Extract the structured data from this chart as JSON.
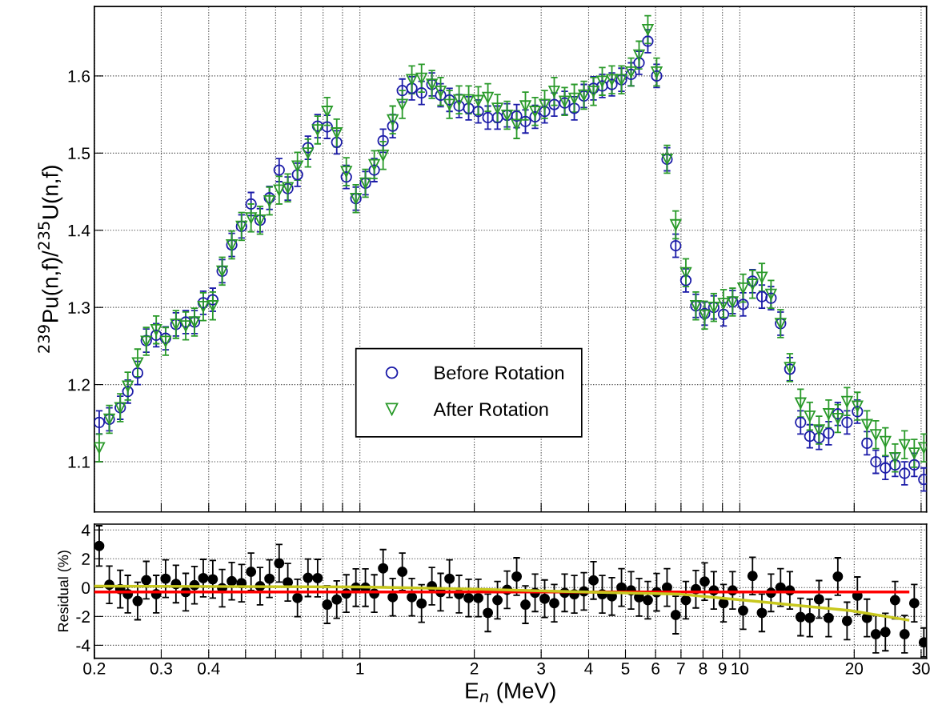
{
  "chart_data": [
    {
      "type": "scatter",
      "ylabel": "$^{239}$Pu(n,f)/$^{235}$U(n,f)",
      "log": "x",
      "grid": true,
      "legend": "bottom",
      "tick_labels": "y",
      "xlim": [
        0.2,
        31
      ],
      "ylim": [
        1.035,
        1.69
      ],
      "yticks": [
        1.1,
        1.2,
        1.3,
        1.4,
        1.5,
        1.6
      ],
      "xticks": [
        0.2,
        0.3,
        0.4,
        {
          "value": 0.5,
          "label": null
        },
        {
          "value": 0.6,
          "label": null
        },
        {
          "value": 0.7,
          "label": null
        },
        {
          "value": 0.8,
          "label": null
        },
        {
          "value": 0.9,
          "label": null
        },
        1,
        2,
        3,
        4,
        5,
        6,
        7,
        8,
        9,
        10,
        20,
        30
      ],
      "x": [
        0.206,
        0.219,
        0.234,
        0.245,
        0.26,
        0.274,
        0.291,
        0.308,
        0.328,
        0.348,
        0.367,
        0.387,
        0.41,
        0.434,
        0.46,
        0.488,
        0.517,
        0.546,
        0.578,
        0.613,
        0.646,
        0.685,
        0.73,
        0.774,
        0.82,
        0.869,
        0.921,
        0.976,
        1.034,
        1.091,
        1.151,
        1.22,
        1.293,
        1.37,
        1.453,
        1.547,
        1.631,
        1.721,
        1.824,
        1.933,
        2.049,
        2.172,
        2.302,
        2.44,
        2.586,
        2.727,
        2.891,
        3.064,
        3.247,
        3.459,
        3.667,
        3.887,
        4.119,
        4.344,
        4.605,
        4.881,
        5.173,
        5.43,
        5.726,
        6.04,
        6.433,
        6.78,
        7.21,
        7.66,
        8.08,
        8.54,
        9.06,
        9.57,
        10.2,
        10.8,
        11.43,
        12.08,
        12.8,
        13.54,
        14.45,
        15.28,
        16.16,
        17.13,
        18.11,
        19.15,
        20.39,
        21.61,
        22.8,
        24.16,
        25.62,
        27.14,
        28.78,
        30.5
      ],
      "series": [
        {
          "name": "Before Rotation",
          "color": "#1c1ca8",
          "marker": "circle",
          "values": [
            1.151,
            1.155,
            1.17,
            1.191,
            1.215,
            1.257,
            1.264,
            1.26,
            1.278,
            1.281,
            1.281,
            1.306,
            1.31,
            1.347,
            1.381,
            1.405,
            1.434,
            1.413,
            1.442,
            1.478,
            1.454,
            1.472,
            1.507,
            1.535,
            1.534,
            1.514,
            1.469,
            1.441,
            1.461,
            1.478,
            1.516,
            1.535,
            1.581,
            1.584,
            1.578,
            1.589,
            1.575,
            1.569,
            1.561,
            1.558,
            1.554,
            1.546,
            1.546,
            1.549,
            1.548,
            1.541,
            1.547,
            1.554,
            1.563,
            1.565,
            1.558,
            1.574,
            1.584,
            1.587,
            1.589,
            1.595,
            1.602,
            1.617,
            1.645,
            1.6,
            1.492,
            1.38,
            1.335,
            1.302,
            1.292,
            1.3,
            1.291,
            1.307,
            1.304,
            1.334,
            1.314,
            1.312,
            1.279,
            1.22,
            1.151,
            1.133,
            1.131,
            1.137,
            1.162,
            1.151,
            1.165,
            1.124,
            1.1,
            1.092,
            1.096,
            1.085,
            1.096,
            1.077
          ],
          "errors": [
            0.015,
            0.015,
            0.015,
            0.015,
            0.015,
            0.015,
            0.015,
            0.015,
            0.015,
            0.015,
            0.015,
            0.015,
            0.015,
            0.015,
            0.015,
            0.015,
            0.015,
            0.015,
            0.015,
            0.015,
            0.015,
            0.015,
            0.015,
            0.015,
            0.015,
            0.015,
            0.015,
            0.015,
            0.015,
            0.015,
            0.015,
            0.015,
            0.015,
            0.015,
            0.015,
            0.015,
            0.015,
            0.015,
            0.015,
            0.015,
            0.015,
            0.015,
            0.015,
            0.015,
            0.015,
            0.015,
            0.015,
            0.015,
            0.015,
            0.015,
            0.015,
            0.015,
            0.015,
            0.015,
            0.015,
            0.015,
            0.015,
            0.015,
            0.015,
            0.015,
            0.015,
            0.015,
            0.015,
            0.015,
            0.015,
            0.015,
            0.015,
            0.015,
            0.015,
            0.015,
            0.015,
            0.015,
            0.015,
            0.015,
            0.015,
            0.015,
            0.015,
            0.015,
            0.015,
            0.015,
            0.015,
            0.015,
            0.015,
            0.015,
            0.015,
            0.015,
            0.015,
            0.015
          ]
        },
        {
          "name": "After Rotation",
          "color": "#2a9a2a",
          "marker": "triangle",
          "values": [
            1.118,
            1.155,
            1.17,
            1.198,
            1.228,
            1.256,
            1.271,
            1.256,
            1.278,
            1.276,
            1.281,
            1.301,
            1.302,
            1.347,
            1.381,
            1.405,
            1.416,
            1.413,
            1.438,
            1.452,
            1.455,
            1.483,
            1.5,
            1.53,
            1.554,
            1.526,
            1.476,
            1.441,
            1.461,
            1.485,
            1.497,
            1.543,
            1.563,
            1.595,
            1.597,
            1.589,
            1.58,
            1.563,
            1.569,
            1.569,
            1.568,
            1.572,
            1.558,
            1.549,
            1.537,
            1.561,
            1.554,
            1.563,
            1.58,
            1.567,
            1.571,
            1.575,
            1.58,
            1.593,
            1.595,
            1.595,
            1.605,
            1.627,
            1.66,
            1.605,
            1.492,
            1.407,
            1.345,
            1.302,
            1.29,
            1.3,
            1.305,
            1.307,
            1.325,
            1.33,
            1.339,
            1.317,
            1.279,
            1.222,
            1.176,
            1.159,
            1.141,
            1.162,
            1.156,
            1.178,
            1.172,
            1.148,
            1.135,
            1.126,
            1.105,
            1.122,
            1.111,
            1.118
          ],
          "errors": [
            0.018,
            0.018,
            0.018,
            0.018,
            0.018,
            0.018,
            0.018,
            0.018,
            0.018,
            0.018,
            0.018,
            0.018,
            0.018,
            0.018,
            0.018,
            0.018,
            0.018,
            0.018,
            0.018,
            0.018,
            0.018,
            0.018,
            0.018,
            0.018,
            0.018,
            0.018,
            0.018,
            0.018,
            0.018,
            0.018,
            0.018,
            0.018,
            0.018,
            0.018,
            0.018,
            0.018,
            0.018,
            0.018,
            0.018,
            0.018,
            0.018,
            0.018,
            0.018,
            0.018,
            0.018,
            0.018,
            0.018,
            0.018,
            0.018,
            0.018,
            0.018,
            0.018,
            0.018,
            0.018,
            0.018,
            0.018,
            0.018,
            0.018,
            0.018,
            0.018,
            0.018,
            0.018,
            0.018,
            0.018,
            0.018,
            0.018,
            0.018,
            0.018,
            0.018,
            0.018,
            0.018,
            0.018,
            0.018,
            0.018,
            0.018,
            0.018,
            0.018,
            0.018,
            0.018,
            0.018,
            0.018,
            0.018,
            0.018,
            0.018,
            0.018,
            0.018,
            0.018,
            0.018
          ]
        }
      ]
    },
    {
      "type": "scatter",
      "xlabel": "E$_{n}$ (MeV)",
      "ylabel": "Residual (%)",
      "log": "x",
      "grid": true,
      "xlim": [
        0.2,
        31
      ],
      "ylim": [
        -4.9,
        4.4
      ],
      "yticks": [
        -4,
        -2,
        0,
        2,
        4
      ],
      "xticks": [
        0.2,
        0.3,
        0.4,
        {
          "value": 0.5,
          "label": null
        },
        {
          "value": 0.6,
          "label": null
        },
        {
          "value": 0.7,
          "label": null
        },
        {
          "value": 0.8,
          "label": null
        },
        {
          "value": 0.9,
          "label": null
        },
        1,
        2,
        3,
        4,
        5,
        6,
        7,
        8,
        9,
        10,
        20,
        30
      ],
      "x": [
        0.206,
        0.219,
        0.234,
        0.245,
        0.26,
        0.274,
        0.291,
        0.308,
        0.328,
        0.348,
        0.367,
        0.387,
        0.41,
        0.434,
        0.46,
        0.488,
        0.517,
        0.546,
        0.578,
        0.613,
        0.646,
        0.685,
        0.73,
        0.774,
        0.82,
        0.869,
        0.921,
        0.976,
        1.034,
        1.091,
        1.151,
        1.22,
        1.293,
        1.37,
        1.453,
        1.547,
        1.631,
        1.721,
        1.824,
        1.933,
        2.049,
        2.172,
        2.302,
        2.44,
        2.586,
        2.727,
        2.891,
        3.064,
        3.247,
        3.459,
        3.667,
        3.887,
        4.119,
        4.344,
        4.605,
        4.881,
        5.173,
        5.43,
        5.726,
        6.04,
        6.433,
        6.78,
        7.21,
        7.66,
        8.08,
        8.54,
        9.06,
        9.57,
        10.2,
        10.8,
        11.43,
        12.08,
        12.8,
        13.54,
        14.45,
        15.28,
        16.16,
        17.13,
        18.11,
        19.15,
        20.39,
        21.61,
        22.8,
        24.16,
        25.62,
        27.14,
        28.78,
        30.5
      ],
      "series": [
        {
          "type": "scatter",
          "color": "#000000",
          "marker": "circle",
          "values": [
            2.89,
            0.2,
            -0.1,
            -0.45,
            -0.93,
            0.52,
            -0.45,
            0.62,
            0.25,
            -0.31,
            0.17,
            0.66,
            0.58,
            -0.04,
            0.45,
            0.31,
            1.1,
            0.1,
            0.62,
            1.69,
            0.37,
            -0.72,
            0.68,
            0.66,
            -1.18,
            -0.83,
            -0.41,
            0,
            0,
            -0.41,
            1.34,
            -0.66,
            1.1,
            -0.66,
            -1.1,
            0.1,
            -0.31,
            0.62,
            -0.45,
            -0.72,
            -0.72,
            -1.75,
            -0.87,
            -0.15,
            0.77,
            -1.18,
            -0.36,
            -0.77,
            -1.08,
            -0.36,
            -0.46,
            -0.26,
            0.5,
            -0.46,
            -0.61,
            0.01,
            -0.19,
            -0.67,
            -0.87,
            -0.32,
            0.01,
            -1.9,
            -0.87,
            -0.11,
            0.42,
            -0.19,
            -1.08,
            -0.19,
            -1.59,
            0.81,
            -1.75,
            -0.36,
            0.01,
            -0.19,
            -2.04,
            -2.1,
            -0.81,
            -2.1,
            0.77,
            -2.31,
            -0.56,
            -2.1,
            -3.23,
            -3.08,
            -0.87,
            -3.23,
            -1.08,
            -3.8
          ],
          "errors": [
            1.4,
            1.3,
            1.3,
            1.3,
            1.3,
            1.3,
            1.3,
            1.3,
            1.3,
            1.3,
            1.3,
            1.3,
            1.3,
            1.3,
            1.3,
            1.3,
            1.3,
            1.3,
            1.3,
            1.3,
            1.3,
            1.3,
            1.3,
            1.3,
            1.3,
            1.3,
            1.3,
            1.3,
            1.3,
            1.3,
            1.3,
            1.3,
            1.3,
            1.3,
            1.3,
            1.3,
            1.3,
            1.3,
            1.3,
            1.3,
            1.3,
            1.3,
            1.3,
            1.3,
            1.3,
            1.3,
            1.3,
            1.3,
            1.3,
            1.3,
            1.3,
            1.3,
            1.3,
            1.3,
            1.3,
            1.3,
            1.3,
            1.3,
            1.3,
            1.3,
            1.3,
            1.3,
            1.3,
            1.3,
            1.3,
            1.3,
            1.3,
            1.3,
            1.3,
            1.3,
            1.3,
            1.3,
            1.3,
            1.3,
            1.3,
            1.3,
            1.3,
            1.3,
            1.3,
            1.3,
            1.3,
            1.3,
            1.3,
            1.3,
            1.3,
            1.3,
            1.3,
            1.0
          ]
        },
        {
          "type": "line",
          "color": "#ff0000",
          "x": [
            0.2,
            27.7
          ],
          "values": [
            -0.3,
            -0.3
          ]
        },
        {
          "type": "line",
          "color": "#c8c81e",
          "x": [
            0.2,
            1,
            2,
            3.2,
            7,
            11.2,
            19.5,
            27.7
          ],
          "values": [
            0.1,
            0.05,
            -0.1,
            -0.25,
            -0.46,
            -0.97,
            -1.59,
            -2.25
          ]
        }
      ]
    }
  ]
}
